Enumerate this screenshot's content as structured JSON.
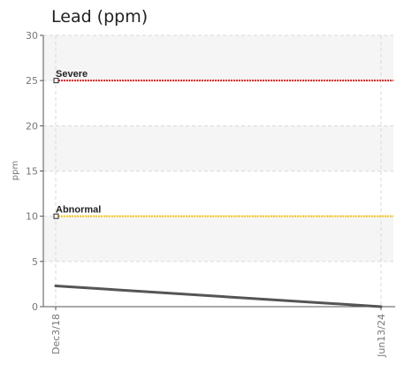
{
  "chart_data": {
    "type": "line",
    "title": "Lead (ppm)",
    "ylabel": "ppm",
    "xlabel": "",
    "ylim": [
      0,
      30
    ],
    "y_ticks": [
      0,
      5,
      10,
      15,
      20,
      25,
      30
    ],
    "x": [
      "Dec3/18",
      "Jun13/24"
    ],
    "series": [
      {
        "values": [
          2.3,
          0.0
        ],
        "color": "#555555"
      }
    ],
    "reference_lines": [
      {
        "label": "Severe",
        "value": 25,
        "color": "#e02020"
      },
      {
        "label": "Abnormal",
        "value": 10,
        "color": "#f5c518"
      }
    ],
    "grid": true,
    "band_color": "#f5f5f5"
  }
}
